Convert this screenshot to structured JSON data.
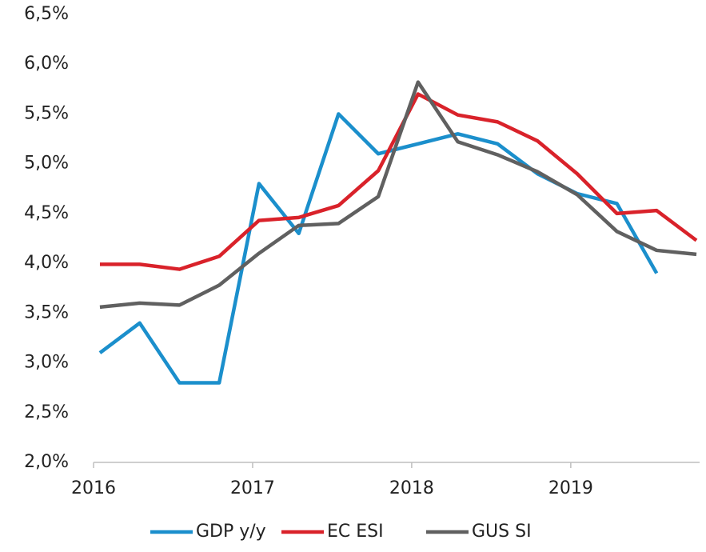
{
  "chart_data": {
    "type": "line",
    "x": [
      2016.04,
      2016.29,
      2016.54,
      2016.79,
      2017.04,
      2017.29,
      2017.54,
      2017.79,
      2018.04,
      2018.29,
      2018.54,
      2018.79,
      2019.04,
      2019.29,
      2019.54,
      2019.79
    ],
    "series": [
      {
        "name": "GDP y/y",
        "color": "#1b8fcc",
        "values": [
          3.1,
          3.4,
          2.8,
          2.8,
          4.8,
          4.3,
          5.5,
          5.1,
          5.2,
          5.3,
          5.2,
          4.9,
          4.7,
          4.6,
          3.9,
          null
        ]
      },
      {
        "name": "EC ESI",
        "color": "#d9222a",
        "values": [
          3.99,
          3.99,
          3.94,
          4.07,
          4.43,
          4.46,
          4.58,
          4.93,
          5.7,
          5.49,
          5.42,
          5.23,
          4.9,
          4.5,
          4.53,
          4.23
        ]
      },
      {
        "name": "GUS SI",
        "color": "#606060",
        "values": [
          3.56,
          3.6,
          3.58,
          3.78,
          4.1,
          4.38,
          4.4,
          4.67,
          5.82,
          5.22,
          5.09,
          4.92,
          4.69,
          4.32,
          4.13,
          4.09
        ]
      }
    ],
    "xlim": [
      2016,
      2019.81
    ],
    "xticks": [
      2016,
      2017,
      2018,
      2019
    ],
    "ylim": [
      2.0,
      6.5
    ],
    "yticks": [
      {
        "value": 2.0,
        "label": "2,0%"
      },
      {
        "value": 2.5,
        "label": "2,5%"
      },
      {
        "value": 3.0,
        "label": "3,0%"
      },
      {
        "value": 3.5,
        "label": "3,5%"
      },
      {
        "value": 4.0,
        "label": "4,0%"
      },
      {
        "value": 4.5,
        "label": "4,5%"
      },
      {
        "value": 5.0,
        "label": "5,0%"
      },
      {
        "value": 5.5,
        "label": "5,5%"
      },
      {
        "value": 6.0,
        "label": "6,0%"
      },
      {
        "value": 6.5,
        "label": "6,5%"
      }
    ],
    "grid": false,
    "legend": "bottom"
  }
}
